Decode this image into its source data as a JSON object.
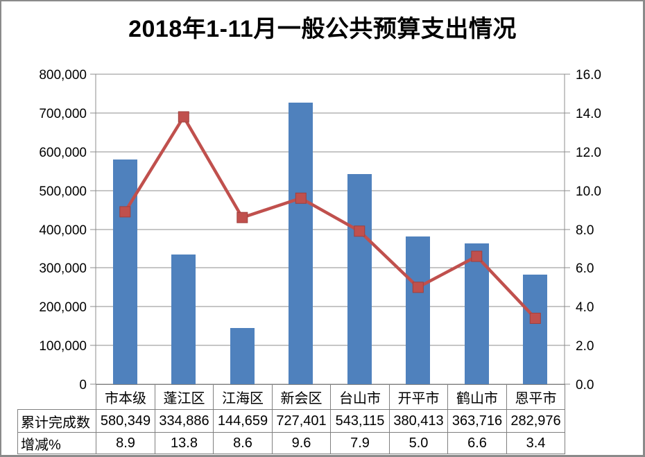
{
  "chart_data": {
    "type": "bar",
    "subtype": "combo-bar-line",
    "title": "2018年1-11月一般公共预算支出情况",
    "categories": [
      "市本级",
      "蓬江区",
      "江海区",
      "新会区",
      "台山市",
      "开平市",
      "鹤山市",
      "恩平市"
    ],
    "series": [
      {
        "name": "累计完成数",
        "type": "bar",
        "axis": "left",
        "color": "#4F81BD",
        "values": [
          580349,
          334886,
          144659,
          727401,
          543115,
          380413,
          363716,
          282976
        ]
      },
      {
        "name": "增减%",
        "type": "line",
        "axis": "right",
        "color": "#C0504D",
        "values": [
          8.9,
          13.8,
          8.6,
          9.6,
          7.9,
          5.0,
          6.6,
          3.4
        ]
      }
    ],
    "left_axis": {
      "min": 0,
      "max": 800000,
      "step": 100000,
      "tick_labels": [
        "0",
        "100,000",
        "200,000",
        "300,000",
        "400,000",
        "500,000",
        "600,000",
        "700,000",
        "800,000"
      ]
    },
    "right_axis": {
      "min": 0,
      "max": 16,
      "step": 2,
      "tick_labels": [
        "0.0",
        "2.0",
        "4.0",
        "6.0",
        "8.0",
        "10.0",
        "12.0",
        "14.0",
        "16.0"
      ]
    },
    "grid": true,
    "legend_position": "none"
  },
  "table": {
    "columns": [
      "市本级",
      "蓬江区",
      "江海区",
      "新会区",
      "台山市",
      "开平市",
      "鹤山市",
      "恩平市"
    ],
    "rows": [
      {
        "header": "累计完成数",
        "cells": [
          "580,349",
          "334,886",
          "144,659",
          "727,401",
          "543,115",
          "380,413",
          "363,716",
          "282,976"
        ]
      },
      {
        "header": "增减%",
        "cells": [
          "8.9",
          "13.8",
          "8.6",
          "9.6",
          "7.9",
          "5.0",
          "6.6",
          "3.4"
        ]
      }
    ]
  },
  "colors": {
    "bar": "#4F81BD",
    "line": "#C0504D",
    "marker_edge": "#A0403D",
    "grid": "#8C8C8C",
    "axis": "#8C8C8C",
    "table_border": "#7F7F7F",
    "text": "#000000",
    "frame_border": "#8A8A8A",
    "background": "#FFFFFF"
  }
}
